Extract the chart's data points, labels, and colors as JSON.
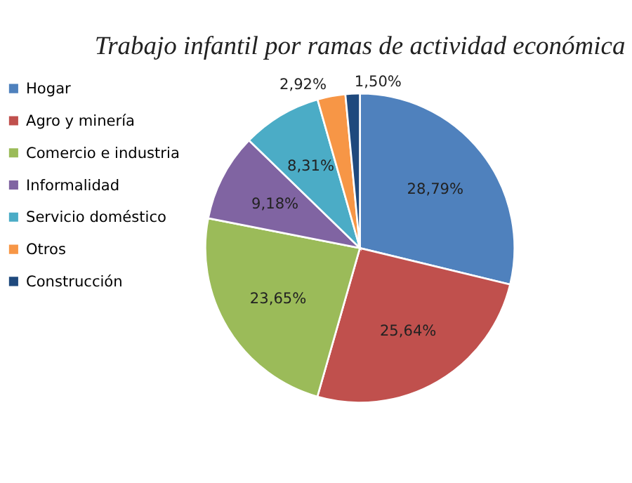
{
  "chart_data": {
    "type": "pie",
    "title": "Trabajo infantil por ramas de actividad económica",
    "categories": [
      "Hogar",
      "Agro y minería",
      "Comercio e industria",
      "Informalidad",
      "Servicio doméstico",
      "Otros",
      "Construcción"
    ],
    "values": [
      28.79,
      25.64,
      23.65,
      9.18,
      8.31,
      2.92,
      1.5
    ],
    "colors": [
      "#4f81bd",
      "#c0504d",
      "#9bbb59",
      "#8064a2",
      "#4bacc6",
      "#f79646",
      "#1f497d"
    ],
    "value_labels": [
      "28,79%",
      "25,64%",
      "23,65%",
      "9,18%",
      "8,31%",
      "2,92%",
      "1,50%"
    ],
    "legend": "left"
  }
}
